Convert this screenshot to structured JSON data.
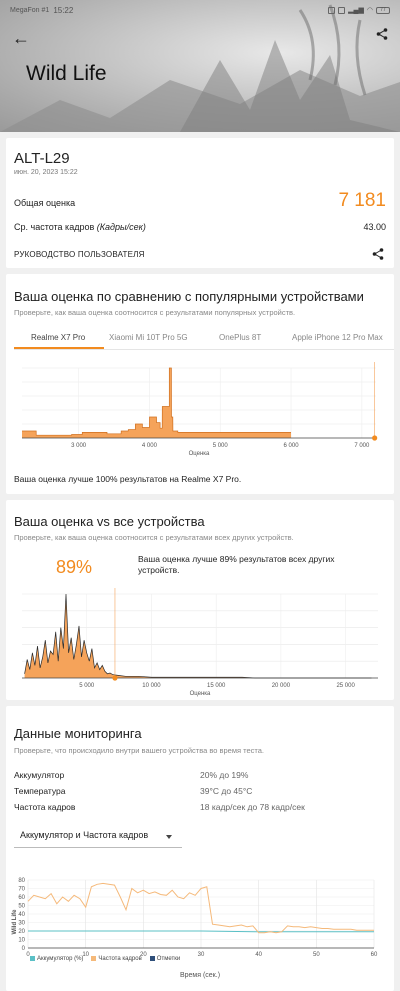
{
  "status": {
    "carrier": "MegaFon #1",
    "time": "15:22",
    "battery": "77"
  },
  "header": {
    "title": "Wild Life"
  },
  "score_card": {
    "device": "ALT-L29",
    "date": "июн. 20, 2023 15:22",
    "overall_label": "Общая оценка",
    "overall_value": "7 181",
    "fps_label_prefix": "Ср. частота кадров ",
    "fps_label_italic": "(Кадры/сек)",
    "fps_value": "43.00",
    "guide_label": "РУКОВОДСТВО ПОЛЬЗОВАТЕЛЯ"
  },
  "compare": {
    "title": "Ваша оценка по сравнению с популярными устройствами",
    "subtitle": "Проверьте, как ваша оценка соотносится с результатами популярных устройств.",
    "tabs": [
      "Realme X7 Pro",
      "Xiaomi Mi 10T Pro 5G",
      "OnePlus 8T",
      "Apple iPhone 12 Pro Max"
    ],
    "active_tab": 0,
    "xlabel": "Оценка",
    "note": "Ваша оценка лучше 100% результатов на Realme X7 Pro.",
    "chart_data": {
      "type": "area",
      "x": [
        2200,
        2400,
        2401,
        2900,
        2901,
        3050,
        3051,
        3400,
        3401,
        3600,
        3601,
        3700,
        3701,
        3800,
        3801,
        3900,
        3901,
        4000,
        4001,
        4100,
        4101,
        4150,
        4151,
        4180,
        4181,
        4280,
        4281,
        4310,
        4311,
        4330,
        4331,
        4400,
        4401,
        6000
      ],
      "values": [
        10,
        10,
        4,
        4,
        5,
        5,
        8,
        8,
        6,
        6,
        10,
        10,
        12,
        12,
        20,
        20,
        15,
        15,
        30,
        30,
        22,
        22,
        14,
        14,
        45,
        45,
        100,
        100,
        30,
        30,
        10,
        10,
        8,
        8
      ],
      "your_score": 7181,
      "xticks": [
        "3 000",
        "4 000",
        "5 000",
        "6 000",
        "7 000"
      ],
      "xlim": [
        2200,
        7200
      ],
      "ylim": [
        0,
        100
      ],
      "grid": true
    }
  },
  "vs_all": {
    "title": "Ваша оценка vs все устройства",
    "subtitle": "Проверьте, как ваша оценка соотносится с результатами всех других устройств.",
    "percent": "89%",
    "note": "Ваша оценка лучше 89% результатов всех других устройств.",
    "xlabel": "Оценка",
    "chart_data": {
      "type": "area",
      "x": [
        200,
        400,
        600,
        800,
        1000,
        1200,
        1400,
        1600,
        1800,
        2000,
        2200,
        2400,
        2600,
        2800,
        3000,
        3200,
        3400,
        3600,
        3800,
        4000,
        4200,
        4400,
        4600,
        4800,
        5000,
        5200,
        5400,
        5600,
        5800,
        6000,
        6200,
        6400,
        6600,
        6800,
        7000,
        7500,
        8000,
        9000,
        10000,
        11000,
        12000,
        13000,
        14000,
        15000,
        16000,
        17000,
        18000,
        20000,
        22000,
        25000,
        27000
      ],
      "values": [
        5,
        22,
        10,
        30,
        15,
        38,
        12,
        25,
        45,
        18,
        32,
        28,
        55,
        20,
        60,
        35,
        100,
        30,
        48,
        22,
        40,
        62,
        25,
        45,
        30,
        20,
        35,
        12,
        18,
        10,
        15,
        8,
        5,
        6,
        4,
        3,
        2,
        2,
        1,
        1,
        1,
        1,
        1,
        1,
        1,
        1,
        0,
        0,
        0,
        0,
        0
      ],
      "your_score": 7181,
      "xticks": [
        "5 000",
        "10 000",
        "15 000",
        "20 000",
        "25 000"
      ],
      "xlim": [
        0,
        27500
      ],
      "ylim": [
        0,
        100
      ],
      "grid": true
    }
  },
  "monitoring": {
    "title": "Данные мониторинга",
    "subtitle": "Проверьте, что происходило внутри вашего устройства во время теста.",
    "rows": [
      {
        "label": "Аккумулятор",
        "value": "20% до 19%"
      },
      {
        "label": "Температура",
        "value": "39°C до 45°C"
      },
      {
        "label": "Частота кадров",
        "value": "18 кадр/сек до 78 кадр/сек"
      }
    ],
    "dropdown": "Аккумулятор и Частота кадров",
    "legend": [
      "Аккумулятор (%)",
      "Частота кадров",
      "Отметки"
    ],
    "ylabel": "Wild Life",
    "xlabel": "Время (сек.)",
    "colors": {
      "battery": "#5bc0c6",
      "fps": "#f5b97a",
      "marks": "#2f4f7a"
    },
    "chart_data": {
      "type": "line",
      "xticks": [
        "0",
        "10",
        "20",
        "30",
        "40",
        "50",
        "60"
      ],
      "yticks": [
        "0",
        "10",
        "20",
        "30",
        "40",
        "50",
        "60",
        "70",
        "80"
      ],
      "xlim": [
        0,
        60
      ],
      "ylim": [
        0,
        80
      ],
      "series": [
        {
          "name": "Аккумулятор (%)",
          "x": [
            0,
            10,
            20,
            30,
            40,
            50,
            60
          ],
          "values": [
            20,
            20,
            20,
            20,
            19,
            19,
            19
          ]
        },
        {
          "name": "Частота кадров",
          "x": [
            0,
            1,
            2,
            3,
            4,
            5,
            6,
            7,
            8,
            9,
            10,
            11,
            12,
            13,
            14,
            15,
            16,
            17,
            18,
            19,
            20,
            21,
            22,
            23,
            24,
            25,
            26,
            27,
            28,
            29,
            30,
            31,
            32,
            33,
            34,
            35,
            36,
            37,
            38,
            39,
            40,
            41,
            42,
            43,
            44,
            45,
            46,
            47,
            48,
            49,
            50,
            51,
            52,
            53,
            54,
            55,
            56,
            57,
            58,
            59,
            60
          ],
          "values": [
            55,
            62,
            60,
            58,
            64,
            52,
            60,
            55,
            62,
            58,
            48,
            72,
            75,
            76,
            75,
            74,
            60,
            45,
            70,
            65,
            68,
            64,
            66,
            63,
            62,
            68,
            60,
            58,
            65,
            62,
            70,
            72,
            28,
            27,
            26,
            25,
            26,
            27,
            25,
            26,
            18,
            18,
            19,
            18,
            19,
            26,
            25,
            25,
            24,
            25,
            24,
            23,
            23,
            22,
            22,
            22,
            22,
            21,
            21,
            21,
            21
          ]
        }
      ]
    }
  }
}
